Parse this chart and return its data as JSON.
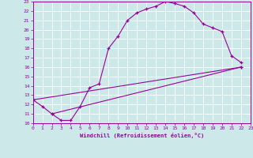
{
  "xlabel": "Windchill (Refroidissement éolien,°C)",
  "xlim": [
    0,
    23
  ],
  "ylim": [
    10,
    23
  ],
  "yticks": [
    10,
    11,
    12,
    13,
    14,
    15,
    16,
    17,
    18,
    19,
    20,
    21,
    22,
    23
  ],
  "xticks": [
    0,
    1,
    2,
    3,
    4,
    5,
    6,
    7,
    8,
    9,
    10,
    11,
    12,
    13,
    14,
    15,
    16,
    17,
    18,
    19,
    20,
    21,
    22,
    23
  ],
  "background_color": "#cce8e8",
  "line_color": "#990099",
  "line1_x": [
    0,
    1,
    2,
    3,
    4,
    5,
    6,
    7,
    8,
    9,
    10,
    11,
    12,
    13,
    14,
    15,
    16,
    17,
    18,
    19,
    20,
    21,
    22
  ],
  "line1_y": [
    12.5,
    11.8,
    11.0,
    10.3,
    10.3,
    11.8,
    13.8,
    14.2,
    18.0,
    19.3,
    21.0,
    21.8,
    22.2,
    22.5,
    23.0,
    22.8,
    22.5,
    21.8,
    20.6,
    20.2,
    19.8,
    17.2,
    16.5
  ],
  "line2_x": [
    0,
    22
  ],
  "line2_y": [
    12.5,
    16.0
  ],
  "line3_x": [
    2,
    22
  ],
  "line3_y": [
    11.0,
    16.0
  ],
  "marker": "+"
}
